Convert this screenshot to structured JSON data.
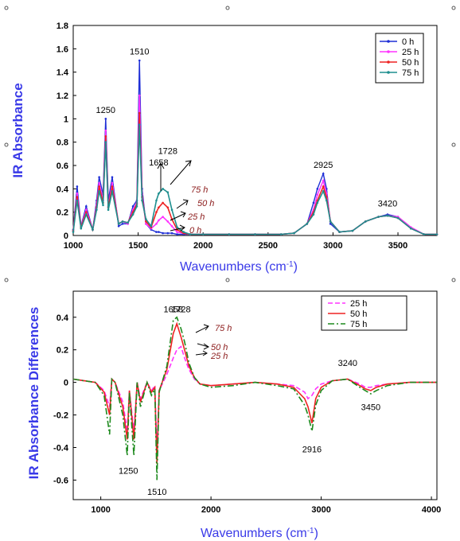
{
  "chart_data": [
    {
      "type": "line",
      "ylabel": "IR Absorbance",
      "xlabel": "Wavenumbers (cm-1)",
      "xlim": [
        1000,
        3800
      ],
      "ylim": [
        0,
        1.8
      ],
      "x_ticks": [
        "1000",
        "1500",
        "2000",
        "2500",
        "3000",
        "3500"
      ],
      "y_ticks": [
        "0",
        "0.2",
        "0.4",
        "0.6",
        "0.8",
        "1",
        "1.2",
        "1.4",
        "1.6",
        "1.8"
      ],
      "legend_position": "top-right",
      "grid": false,
      "x": [
        1000,
        1030,
        1060,
        1100,
        1150,
        1180,
        1200,
        1230,
        1250,
        1270,
        1300,
        1350,
        1380,
        1420,
        1460,
        1490,
        1510,
        1530,
        1560,
        1600,
        1640,
        1658,
        1690,
        1728,
        1760,
        1800,
        1850,
        1900,
        2000,
        2200,
        2400,
        2600,
        2700,
        2800,
        2850,
        2880,
        2925,
        2950,
        2980,
        3050,
        3150,
        3250,
        3350,
        3420,
        3500,
        3600,
        3700,
        3800
      ],
      "series": [
        {
          "name": "0 h",
          "color": "#1f2fd6",
          "values": [
            0.05,
            0.42,
            0.08,
            0.25,
            0.05,
            0.3,
            0.5,
            0.35,
            1.0,
            0.3,
            0.5,
            0.08,
            0.1,
            0.1,
            0.25,
            0.3,
            1.5,
            0.4,
            0.1,
            0.05,
            0.03,
            0.03,
            0.02,
            0.02,
            0.02,
            0.01,
            0.01,
            0.01,
            0.01,
            0.01,
            0.01,
            0.01,
            0.02,
            0.1,
            0.28,
            0.4,
            0.53,
            0.4,
            0.1,
            0.03,
            0.04,
            0.12,
            0.16,
            0.18,
            0.16,
            0.06,
            0.01,
            0.01
          ]
        },
        {
          "name": "25 h",
          "color": "#ff33ff",
          "values": [
            0.04,
            0.36,
            0.07,
            0.22,
            0.05,
            0.26,
            0.45,
            0.3,
            0.9,
            0.25,
            0.45,
            0.1,
            0.12,
            0.1,
            0.22,
            0.28,
            1.2,
            0.35,
            0.1,
            0.06,
            0.1,
            0.13,
            0.16,
            0.12,
            0.08,
            0.03,
            0.02,
            0.01,
            0.01,
            0.01,
            0.01,
            0.01,
            0.02,
            0.1,
            0.22,
            0.35,
            0.47,
            0.36,
            0.12,
            0.03,
            0.04,
            0.12,
            0.16,
            0.17,
            0.16,
            0.07,
            0.01,
            0.01
          ]
        },
        {
          "name": "50 h",
          "color": "#ee2222",
          "values": [
            0.04,
            0.33,
            0.07,
            0.2,
            0.05,
            0.24,
            0.42,
            0.28,
            0.85,
            0.24,
            0.42,
            0.1,
            0.12,
            0.11,
            0.2,
            0.27,
            1.05,
            0.33,
            0.12,
            0.07,
            0.2,
            0.24,
            0.28,
            0.24,
            0.14,
            0.05,
            0.02,
            0.01,
            0.01,
            0.01,
            0.01,
            0.01,
            0.02,
            0.1,
            0.2,
            0.3,
            0.42,
            0.33,
            0.12,
            0.03,
            0.04,
            0.12,
            0.16,
            0.17,
            0.15,
            0.06,
            0.01,
            0.01
          ]
        },
        {
          "name": "75 h",
          "color": "#1e8f8f",
          "values": [
            0.03,
            0.3,
            0.06,
            0.18,
            0.05,
            0.22,
            0.38,
            0.26,
            0.8,
            0.22,
            0.38,
            0.1,
            0.12,
            0.11,
            0.18,
            0.25,
            0.95,
            0.3,
            0.14,
            0.08,
            0.3,
            0.36,
            0.4,
            0.37,
            0.22,
            0.07,
            0.03,
            0.01,
            0.01,
            0.01,
            0.01,
            0.01,
            0.02,
            0.1,
            0.18,
            0.28,
            0.38,
            0.3,
            0.12,
            0.03,
            0.04,
            0.12,
            0.16,
            0.17,
            0.15,
            0.06,
            0.01,
            0.01
          ]
        }
      ],
      "annotations": [
        {
          "text": "1250",
          "x": 1250,
          "y": 1.05
        },
        {
          "text": "1510",
          "x": 1510,
          "y": 1.55
        },
        {
          "text": "1658",
          "x": 1658,
          "y": 0.6
        },
        {
          "text": "1728",
          "x": 1728,
          "y": 0.7
        },
        {
          "text": "2925",
          "x": 2925,
          "y": 0.58
        },
        {
          "text": "3420",
          "x": 3420,
          "y": 0.25
        }
      ],
      "time_labels": [
        "75 h",
        "50 h",
        "25 h",
        "0 h"
      ]
    },
    {
      "type": "line",
      "ylabel": "IR Absorbance Differences",
      "xlabel": "Wavenumbers (cm-1)",
      "xlim": [
        750,
        4050
      ],
      "ylim": [
        -0.72,
        0.56
      ],
      "x_ticks": [
        "1000",
        "2000",
        "3000",
        "4000"
      ],
      "y_ticks": [
        "0.4",
        "0.2",
        "0",
        "-0.2",
        "-0.4",
        "-0.6"
      ],
      "legend_position": "top-right",
      "grid": false,
      "x": [
        750,
        850,
        950,
        1030,
        1080,
        1100,
        1130,
        1200,
        1240,
        1260,
        1300,
        1330,
        1360,
        1420,
        1460,
        1490,
        1510,
        1530,
        1600,
        1658,
        1690,
        1728,
        1760,
        1800,
        1850,
        1900,
        2000,
        2200,
        2400,
        2600,
        2750,
        2850,
        2880,
        2916,
        2950,
        3000,
        3100,
        3240,
        3350,
        3400,
        3450,
        3500,
        3600,
        3800,
        4050
      ],
      "series": [
        {
          "name": "25 h",
          "color": "#ff33ff",
          "dash": "6,3",
          "values": [
            0.02,
            0.01,
            0.0,
            -0.05,
            -0.15,
            0.02,
            0.0,
            -0.12,
            -0.3,
            -0.05,
            -0.3,
            0.0,
            -0.1,
            0.0,
            -0.05,
            -0.02,
            -0.4,
            -0.05,
            0.05,
            0.15,
            0.2,
            0.22,
            0.15,
            0.08,
            0.02,
            -0.01,
            -0.02,
            -0.01,
            0.0,
            -0.01,
            -0.02,
            -0.06,
            -0.1,
            -0.08,
            -0.04,
            -0.01,
            0.01,
            0.02,
            -0.01,
            -0.03,
            -0.03,
            -0.02,
            -0.01,
            0.0,
            0.0
          ]
        },
        {
          "name": "50 h",
          "color": "#ee2222",
          "values": [
            0.02,
            0.01,
            0.0,
            -0.06,
            -0.2,
            0.02,
            0.0,
            -0.15,
            -0.35,
            -0.05,
            -0.35,
            0.0,
            -0.12,
            0.0,
            -0.06,
            -0.03,
            -0.5,
            -0.05,
            0.08,
            0.3,
            0.36,
            0.28,
            0.2,
            0.1,
            0.03,
            -0.01,
            -0.02,
            -0.01,
            0.0,
            -0.01,
            -0.03,
            -0.1,
            -0.15,
            -0.25,
            -0.1,
            -0.03,
            0.01,
            0.02,
            -0.02,
            -0.04,
            -0.05,
            -0.03,
            -0.01,
            0.0,
            0.0
          ]
        },
        {
          "name": "75 h",
          "color": "#1e8a1e",
          "dash": "8,3,2,3",
          "values": [
            0.02,
            0.01,
            0.0,
            -0.08,
            -0.32,
            0.02,
            0.0,
            -0.2,
            -0.45,
            -0.06,
            -0.45,
            0.0,
            -0.15,
            0.0,
            -0.08,
            -0.04,
            -0.6,
            -0.06,
            0.1,
            0.38,
            0.4,
            0.33,
            0.25,
            0.12,
            0.03,
            -0.01,
            -0.03,
            -0.02,
            0.0,
            -0.02,
            -0.04,
            -0.14,
            -0.2,
            -0.3,
            -0.14,
            -0.05,
            0.01,
            0.02,
            -0.03,
            -0.05,
            -0.07,
            -0.05,
            -0.02,
            0.0,
            0.0
          ]
        }
      ],
      "annotations": [
        {
          "text": "1658",
          "x": 1658,
          "y": 0.43
        },
        {
          "text": "1728",
          "x": 1728,
          "y": 0.43
        },
        {
          "text": "1250",
          "x": 1250,
          "y": -0.56
        },
        {
          "text": "1510",
          "x": 1510,
          "y": -0.69
        },
        {
          "text": "2916",
          "x": 2916,
          "y": -0.43
        },
        {
          "text": "3240",
          "x": 3240,
          "y": 0.1
        },
        {
          "text": "3450",
          "x": 3450,
          "y": -0.17
        }
      ],
      "time_labels": [
        "75 h",
        "50 h",
        "25 h"
      ]
    }
  ]
}
